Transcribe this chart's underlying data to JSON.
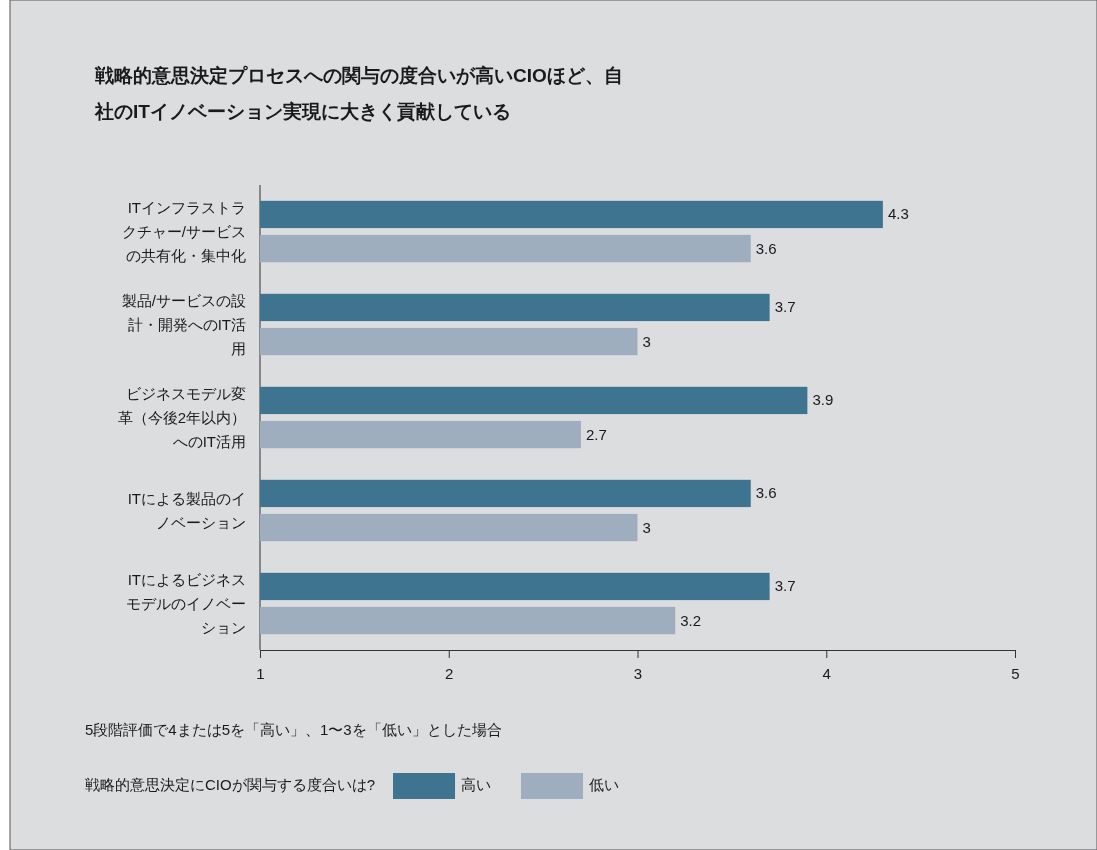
{
  "chart_data": {
    "type": "bar",
    "orientation": "horizontal",
    "title": "戦略的意思決定プロセスへの関与の度合いが高いCIOほど、自社のITイノベーション実現に大きく貢献している",
    "categories": [
      "ITインフラストラクチャー/サービスの共有化・集中化",
      "製品/サービスの設計・開発へのIT活用",
      "ビジネスモデル変革（今後2年以内）へのIT活用",
      "ITによる製品のイノベーション",
      "ITによるビジネスモデルのイノベーション"
    ],
    "series": [
      {
        "name": "高い",
        "color": "#3f7490",
        "values": [
          4.3,
          3.7,
          3.9,
          3.6,
          3.7
        ]
      },
      {
        "name": "低い",
        "color": "#9eaebe",
        "values": [
          3.6,
          3,
          2.7,
          3,
          3.2
        ]
      }
    ],
    "xlim": [
      1,
      5
    ],
    "xticks": [
      1,
      2,
      3,
      4,
      5
    ],
    "grid": false,
    "data_labels": true,
    "legend": "bottom",
    "legend_title": "戦略的意思決定にCIOが関与する度合いは?",
    "annotations": [
      "5段階評価で4または5を「高い」、1〜3を「低い」とした場合"
    ]
  }
}
